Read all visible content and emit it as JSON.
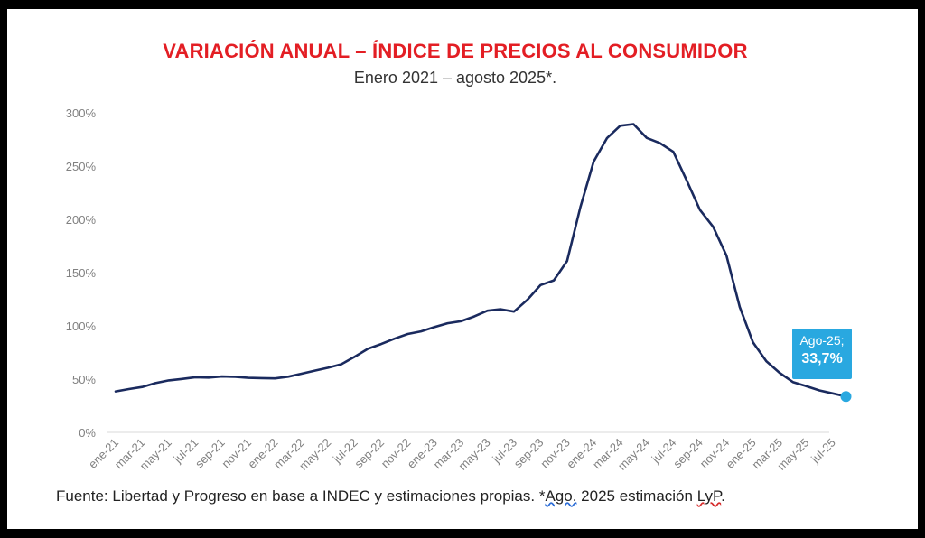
{
  "chart_data": {
    "type": "line",
    "title": "VARIACIÓN ANUAL – ÍNDICE DE PRECIOS AL CONSUMIDOR",
    "subtitle": "Enero 2021 – agosto 2025*.",
    "ylim": [
      0,
      300
    ],
    "y_ticks": [
      "0%",
      "50%",
      "100%",
      "150%",
      "200%",
      "250%",
      "300%"
    ],
    "x_tick_labels": [
      "ene-21",
      "mar-21",
      "may-21",
      "jul-21",
      "sep-21",
      "nov-21",
      "ene-22",
      "mar-22",
      "may-22",
      "jul-22",
      "sep-22",
      "nov-22",
      "ene-23",
      "mar-23",
      "may-23",
      "jul-23",
      "sep-23",
      "nov-23",
      "ene-24",
      "mar-24",
      "may-24",
      "jul-24",
      "sep-24",
      "nov-24",
      "ene-25",
      "mar-25",
      "may-25",
      "jul-25"
    ],
    "x": [
      "ene-21",
      "feb-21",
      "mar-21",
      "abr-21",
      "may-21",
      "jun-21",
      "jul-21",
      "ago-21",
      "sep-21",
      "oct-21",
      "nov-21",
      "dic-21",
      "ene-22",
      "feb-22",
      "mar-22",
      "abr-22",
      "may-22",
      "jun-22",
      "jul-22",
      "ago-22",
      "sep-22",
      "oct-22",
      "nov-22",
      "dic-22",
      "ene-23",
      "feb-23",
      "mar-23",
      "abr-23",
      "may-23",
      "jun-23",
      "jul-23",
      "ago-23",
      "sep-23",
      "oct-23",
      "nov-23",
      "dic-23",
      "ene-24",
      "feb-24",
      "mar-24",
      "abr-24",
      "may-24",
      "jun-24",
      "jul-24",
      "ago-24",
      "sep-24",
      "oct-24",
      "nov-24",
      "dic-24",
      "ene-25",
      "feb-25",
      "mar-25",
      "abr-25",
      "may-25",
      "jun-25",
      "jul-25",
      "ago-25"
    ],
    "series": [
      {
        "color": "#1a2a5e",
        "values": [
          38.5,
          40.7,
          42.6,
          46.3,
          48.8,
          50.2,
          51.8,
          51.4,
          52.5,
          52.1,
          51.2,
          50.9,
          50.7,
          52.3,
          55.1,
          58.0,
          60.7,
          64.0,
          71.0,
          78.5,
          83.0,
          88.0,
          92.4,
          94.8,
          98.8,
          102.5,
          104.3,
          108.8,
          114.2,
          115.6,
          113.4,
          124.4,
          138.3,
          142.7,
          160.9,
          211.4,
          254.2,
          276.2,
          287.9,
          289.4,
          276.4,
          271.5,
          263.4,
          236.7,
          209.0,
          193.0,
          166.0,
          117.8,
          84.5,
          66.9,
          55.9,
          47.3,
          43.5,
          39.4,
          36.6,
          33.7
        ]
      }
    ],
    "annotation": {
      "label": "Ago-25;",
      "value": "33,7%",
      "color": "#29a8e0"
    },
    "grid": false
  },
  "footer": {
    "part1": "Fuente: Libertad y Progreso en base a INDEC y estimaciones propias. *",
    "part2": "Ago.",
    "part3": " 2025 estimación ",
    "part4": "LyP",
    "part5": "."
  }
}
